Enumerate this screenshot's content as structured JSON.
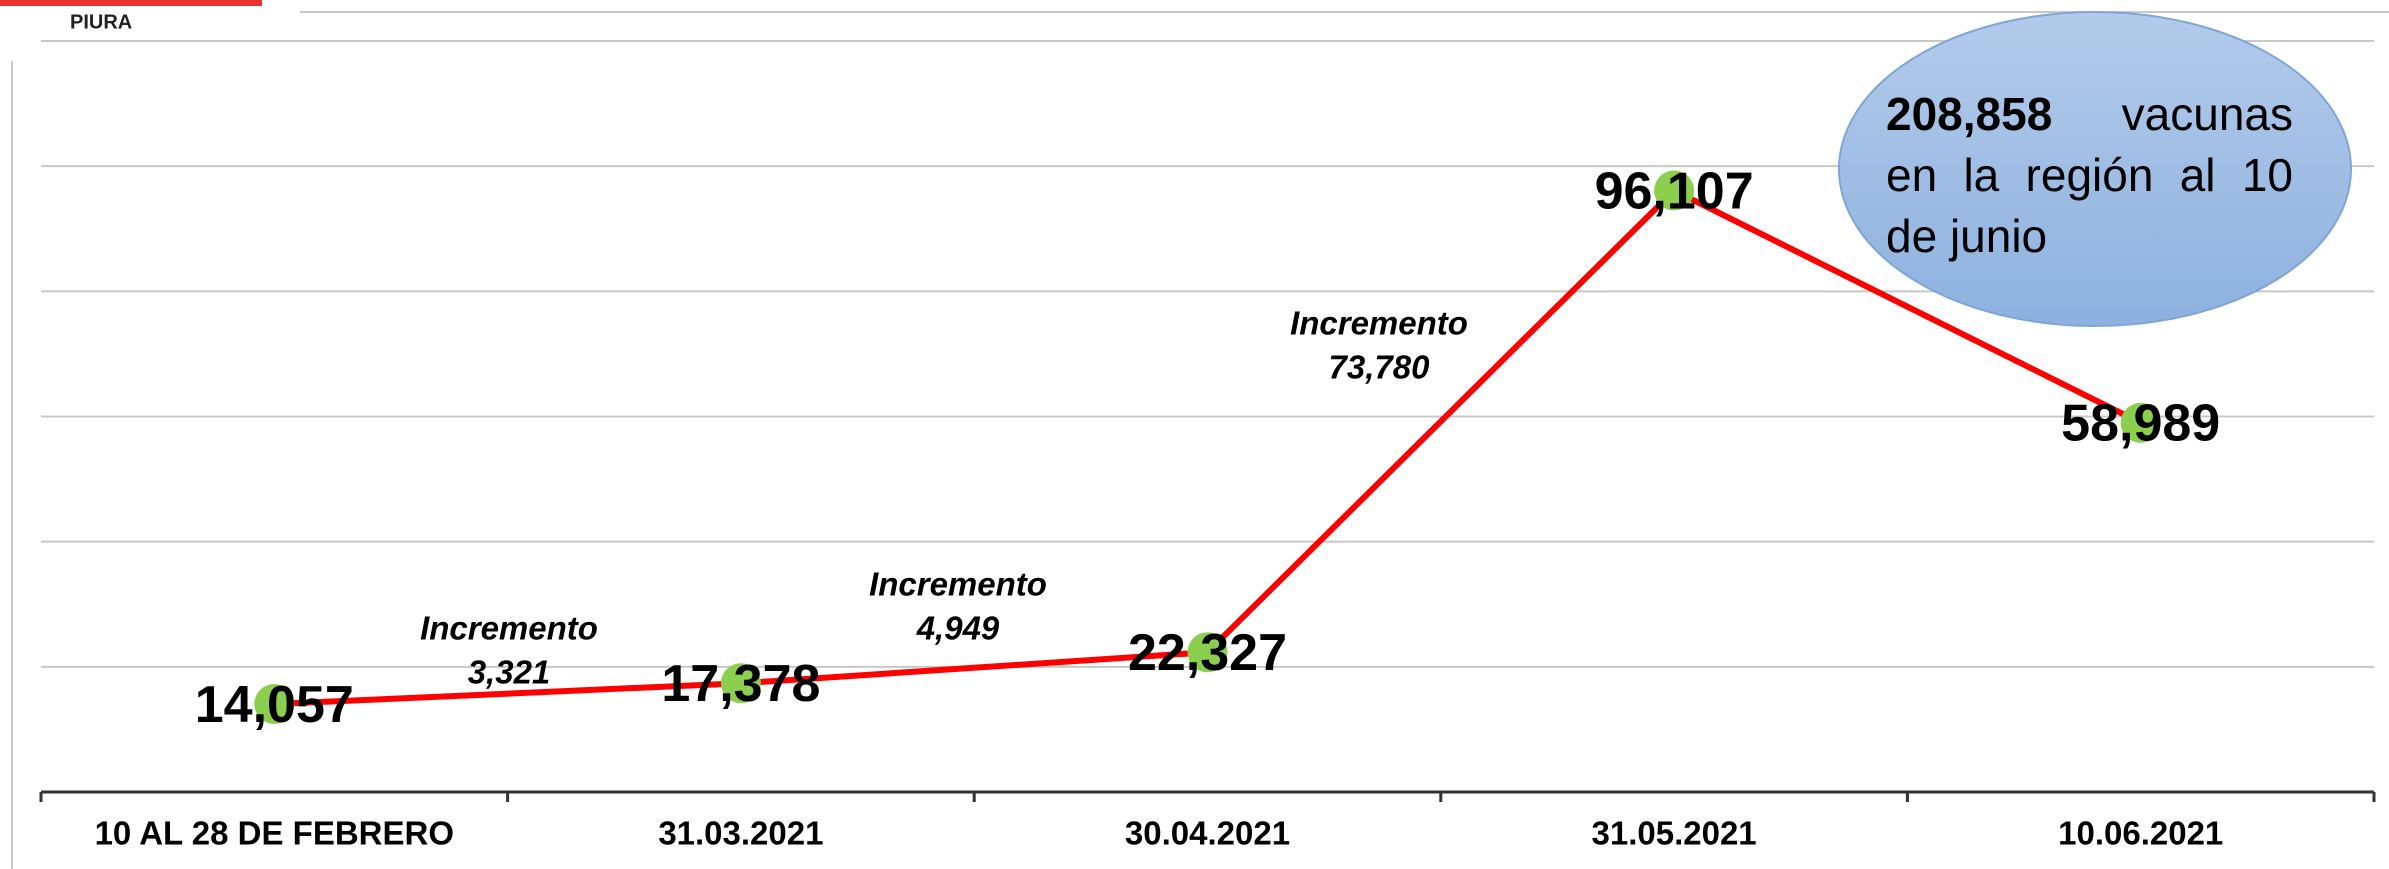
{
  "header": {
    "title": "PIURA"
  },
  "chart_data": {
    "type": "line",
    "categories": [
      "10 AL 28 DE FEBRERO",
      "31.03.2021",
      "30.04.2021",
      "31.05.2021",
      "10.06.2021"
    ],
    "series": [
      {
        "color": "#ff0000",
        "marker_color": "#8ccf4f",
        "values": [
          14057,
          17378,
          22327,
          96107,
          58989
        ],
        "value_labels": [
          "14,057",
          "17,378",
          "22,327",
          "96,107",
          "58,989"
        ]
      }
    ],
    "ylim": [
      0,
      120000
    ],
    "yticks": [
      0,
      20000,
      40000,
      60000,
      80000,
      100000,
      120000
    ],
    "grid": true,
    "annotations": [
      {
        "label": "Incremento",
        "value": "3,321"
      },
      {
        "label": "Incremento",
        "value": "4,949"
      },
      {
        "label": "Incremento",
        "value": "73,780"
      }
    ],
    "bubble": {
      "value": "208,858",
      "text": "vacunas en la región al 10 de junio"
    }
  }
}
